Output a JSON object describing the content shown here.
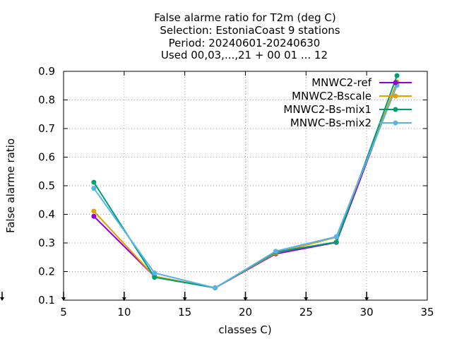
{
  "chart_data": {
    "type": "line",
    "title_lines": [
      "False alarme ratio  for T2m (deg C)",
      "Selection: EstoniaCoast      9 stations",
      "Period: 20240601-20240630",
      "Used 00,03,...,21 + 00 01 ... 12"
    ],
    "xlabel": "classes C)",
    "ylabel": "False alarme ratio",
    "xlim": [
      5,
      35
    ],
    "ylim": [
      0.1,
      0.9
    ],
    "xticks": [
      5,
      10,
      15,
      20,
      25,
      30,
      35
    ],
    "yticks": [
      0.1,
      0.2,
      0.3,
      0.4,
      0.5,
      0.6,
      0.7,
      0.8,
      0.9
    ],
    "xtick_labels": [
      "5",
      "10",
      "15",
      "20",
      "25",
      "30",
      "35"
    ],
    "ytick_labels": [
      "0.1",
      "0.2",
      "0.3",
      "0.4",
      "0.5",
      "0.6",
      "0.7",
      "0.8",
      "0.9"
    ],
    "grid": true,
    "legend_position": "top-right",
    "arrow_markers_x": [
      5,
      10,
      15,
      20,
      25,
      30
    ],
    "series": [
      {
        "name": "MNWC2-ref",
        "color": "#9400d3",
        "marker": "circle",
        "x": [
          7.5,
          12.5,
          17.5,
          22.5,
          27.5,
          32.5
        ],
        "y": [
          0.393,
          0.183,
          0.143,
          0.262,
          0.302,
          0.861
        ]
      },
      {
        "name": "MNWC2-Bscale",
        "color": "#e69f00",
        "marker": "circle",
        "x": [
          7.5,
          12.5,
          17.5,
          22.5,
          27.5,
          32.5
        ],
        "y": [
          0.411,
          0.183,
          0.143,
          0.265,
          0.32,
          0.863
        ]
      },
      {
        "name": "MNWC2-Bs-mix1",
        "color": "#009e73",
        "marker": "circle",
        "x": [
          7.5,
          12.5,
          17.5,
          22.5,
          27.5,
          32.5
        ],
        "y": [
          0.512,
          0.18,
          0.143,
          0.268,
          0.303,
          0.885
        ]
      },
      {
        "name": "MNWC-Bs-mix2",
        "color": "#56b4e9",
        "marker": "circle",
        "x": [
          7.5,
          12.5,
          17.5,
          22.5,
          27.5,
          32.5
        ],
        "y": [
          0.491,
          0.195,
          0.143,
          0.271,
          0.322,
          0.851
        ]
      }
    ]
  }
}
